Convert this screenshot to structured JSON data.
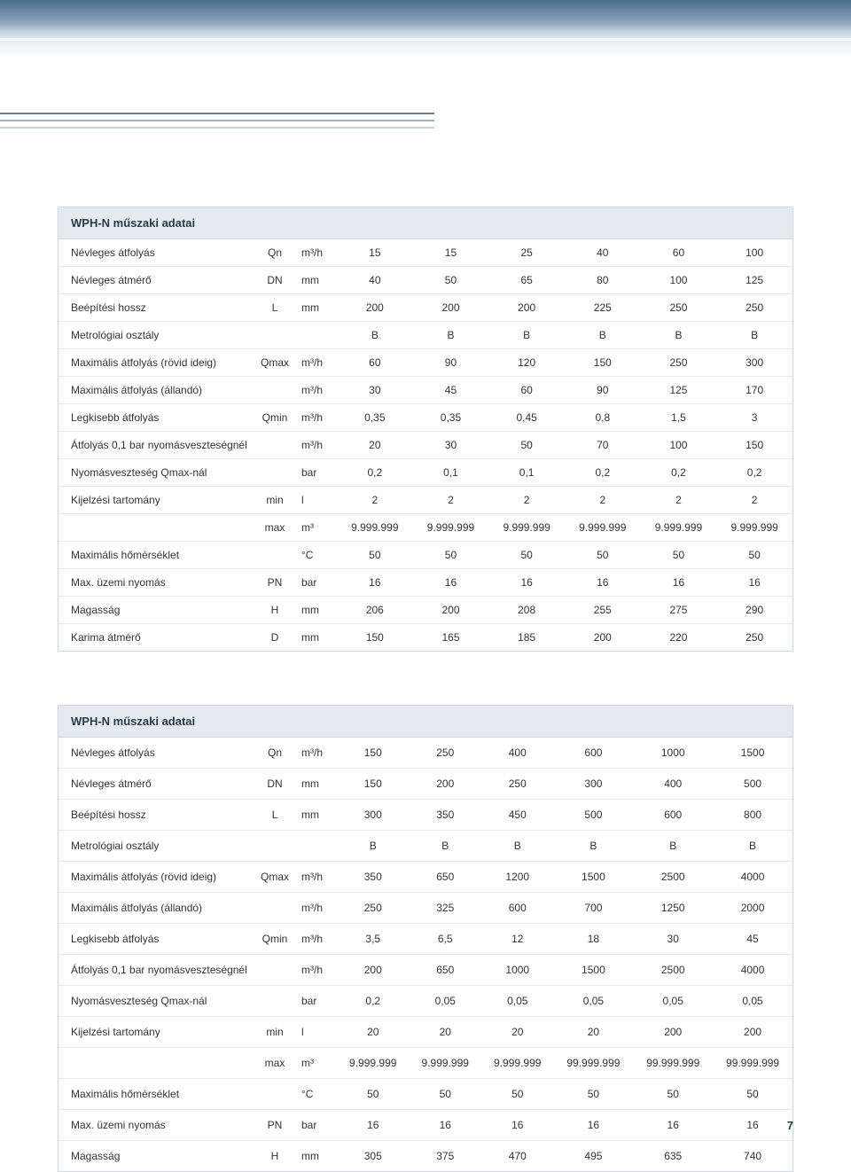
{
  "page_number": "7",
  "colors": {
    "header_bg": "#e4eaf0",
    "border": "#d0d7de",
    "row_border": "#e6eaee",
    "text": "#333333",
    "heading_text": "#2a3a4a",
    "banner_gradient": [
      "#4a6a8a",
      "#8fa8be",
      "#c5d3df",
      "#e8edf2",
      "#ffffff"
    ]
  },
  "table1": {
    "title": "WPH-N műszaki adatai",
    "rows": [
      {
        "label": "Névleges átfolyás",
        "sym": "Qn",
        "unit": "m³/h",
        "v": [
          "15",
          "15",
          "25",
          "40",
          "60",
          "100"
        ]
      },
      {
        "label": "Névleges átmérő",
        "sym": "DN",
        "unit": "mm",
        "v": [
          "40",
          "50",
          "65",
          "80",
          "100",
          "125"
        ]
      },
      {
        "label": "Beépítési hossz",
        "sym": "L",
        "unit": "mm",
        "v": [
          "200",
          "200",
          "200",
          "225",
          "250",
          "250"
        ]
      },
      {
        "label": "Metrológiai osztály",
        "sym": "",
        "unit": "",
        "v": [
          "B",
          "B",
          "B",
          "B",
          "B",
          "B"
        ]
      },
      {
        "label": "Maximális átfolyás (rövid ideig)",
        "sym": "Qmax",
        "unit": "m³/h",
        "v": [
          "60",
          "90",
          "120",
          "150",
          "250",
          "300"
        ]
      },
      {
        "label": "Maximális átfolyás (állandó)",
        "sym": "",
        "unit": "m³/h",
        "v": [
          "30",
          "45",
          "60",
          "90",
          "125",
          "170"
        ]
      },
      {
        "label": "Legkisebb átfolyás",
        "sym": "Qmin",
        "unit": "m³/h",
        "v": [
          "0,35",
          "0,35",
          "0,45",
          "0,8",
          "1,5",
          "3"
        ]
      },
      {
        "label": "Átfolyás 0,1 bar nyomásveszteségnél",
        "sym": "",
        "unit": "m³/h",
        "v": [
          "20",
          "30",
          "50",
          "70",
          "100",
          "150"
        ]
      },
      {
        "label": "Nyomásveszteség Qmax-nál",
        "sym": "",
        "unit": "bar",
        "v": [
          "0,2",
          "0,1",
          "0,1",
          "0,2",
          "0,2",
          "0,2"
        ]
      },
      {
        "label": "Kijelzési tartomány",
        "sym": "min",
        "unit": "l",
        "v": [
          "2",
          "2",
          "2",
          "2",
          "2",
          "2"
        ]
      },
      {
        "label": "",
        "sym": "max",
        "unit": "m³",
        "v": [
          "9.999.999",
          "9.999.999",
          "9.999.999",
          "9.999.999",
          "9.999.999",
          "9.999.999"
        ]
      },
      {
        "label": "Maximális hőmérséklet",
        "sym": "",
        "unit": "°C",
        "v": [
          "50",
          "50",
          "50",
          "50",
          "50",
          "50"
        ]
      },
      {
        "label": "Max. üzemi nyomás",
        "sym": "PN",
        "unit": "bar",
        "v": [
          "16",
          "16",
          "16",
          "16",
          "16",
          "16"
        ]
      },
      {
        "label": "Magasság",
        "sym": "H",
        "unit": "mm",
        "v": [
          "206",
          "200",
          "208",
          "255",
          "275",
          "290"
        ]
      },
      {
        "label": "Karima átmérő",
        "sym": "D",
        "unit": "mm",
        "v": [
          "150",
          "165",
          "185",
          "200",
          "220",
          "250"
        ]
      }
    ]
  },
  "table2": {
    "title": "WPH-N műszaki adatai",
    "rows": [
      {
        "label": "Névleges átfolyás",
        "sym": "Qn",
        "unit": "m³/h",
        "v": [
          "150",
          "250",
          "400",
          "600",
          "1000",
          "1500"
        ]
      },
      {
        "label": "Névleges átmérő",
        "sym": "DN",
        "unit": "mm",
        "v": [
          "150",
          "200",
          "250",
          "300",
          "400",
          "500"
        ]
      },
      {
        "label": "Beépítési hossz",
        "sym": "L",
        "unit": "mm",
        "v": [
          "300",
          "350",
          "450",
          "500",
          "600",
          "800"
        ]
      },
      {
        "label": "Metrológiai osztály",
        "sym": "",
        "unit": "",
        "v": [
          "B",
          "B",
          "B",
          "B",
          "B",
          "B"
        ]
      },
      {
        "label": "Maximális átfolyás (rövid ideig)",
        "sym": "Qmax",
        "unit": "m³/h",
        "v": [
          "350",
          "650",
          "1200",
          "1500",
          "2500",
          "4000"
        ]
      },
      {
        "label": "Maximális átfolyás (állandó)",
        "sym": "",
        "unit": "m³/h",
        "v": [
          "250",
          "325",
          "600",
          "700",
          "1250",
          "2000"
        ]
      },
      {
        "label": "Legkisebb átfolyás",
        "sym": "Qmin",
        "unit": "m³/h",
        "v": [
          "3,5",
          "6,5",
          "12",
          "18",
          "30",
          "45"
        ]
      },
      {
        "label": "Átfolyás 0,1 bar nyomásveszteségnél",
        "sym": "",
        "unit": "m³/h",
        "v": [
          "200",
          "650",
          "1000",
          "1500",
          "2500",
          "4000"
        ]
      },
      {
        "label": "Nyomásveszteség Qmax-nál",
        "sym": "",
        "unit": "bar",
        "v": [
          "0,2",
          "0,05",
          "0,05",
          "0,05",
          "0,05",
          "0,05"
        ]
      },
      {
        "label": "Kijelzési tartomány",
        "sym": "min",
        "unit": "l",
        "v": [
          "20",
          "20",
          "20",
          "20",
          "200",
          "200"
        ]
      },
      {
        "label": "",
        "sym": "max",
        "unit": "m³",
        "v": [
          "9.999.999",
          "9.999.999",
          "9.999.999",
          "99.999.999",
          "99.999.999",
          "99.999.999"
        ]
      },
      {
        "label": "Maximális hőmérséklet",
        "sym": "",
        "unit": "°C",
        "v": [
          "50",
          "50",
          "50",
          "50",
          "50",
          "50"
        ]
      },
      {
        "label": "Max. üzemi nyomás",
        "sym": "PN",
        "unit": "bar",
        "v": [
          "16",
          "16",
          "16",
          "16",
          "16",
          "16"
        ]
      },
      {
        "label": "Magasság",
        "sym": "H",
        "unit": "mm",
        "v": [
          "305",
          "375",
          "470",
          "495",
          "635",
          "740"
        ]
      }
    ]
  }
}
